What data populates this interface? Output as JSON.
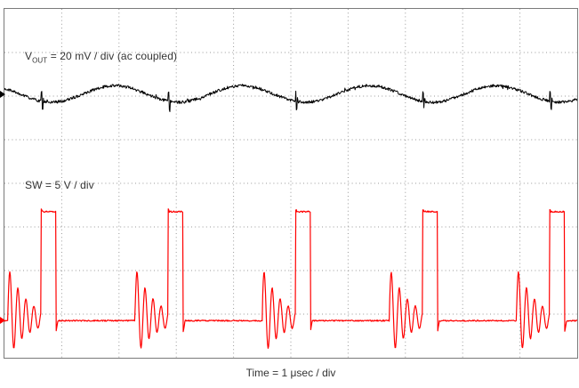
{
  "scope": {
    "ch1_label": {
      "prefix": "V",
      "subscript": "OUT",
      "suffix": " = 20 mV / div (ac coupled)"
    },
    "ch2_label": "SW = 5 V / div",
    "time_label": "Time = 1 μsec / div"
  },
  "chart_data": {
    "type": "line",
    "title": "",
    "x_axis": {
      "label": "Time = 1 μsec / div",
      "divisions": 10,
      "us_per_div": 1
    },
    "y_axis": {
      "divisions": 8
    },
    "layout": {
      "h_div": 10,
      "v_div": 8,
      "grid": "dotted",
      "grid_color": "#999999",
      "border_color": "#7a7a7a",
      "background": "#ffffff",
      "legend": "in-plot text labels"
    },
    "series": [
      {
        "name": "VOUT",
        "label": "VOUT = 20 mV / div (ac coupled)",
        "color": "#000000",
        "volts_per_div_mV": 20,
        "coupling": "ac",
        "center_div": 1.95,
        "ripple_pp_div": 0.38,
        "ripple_pp_mV": 7.6,
        "period_us": 2.22,
        "glitch_at_switch_edges": true
      },
      {
        "name": "SW",
        "label": "SW = 5 V / div",
        "color": "#ff0000",
        "volts_per_div_V": 5,
        "baseline_div": 7.15,
        "high_div": 4.65,
        "amplitude_V": 12.5,
        "period_us": 2.22,
        "on_time_us": 0.26,
        "first_rise_us": 0.64,
        "ring_duration_us": 0.58,
        "ring_period_us": 0.14,
        "ring_peak_div": 6.1
      }
    ]
  }
}
